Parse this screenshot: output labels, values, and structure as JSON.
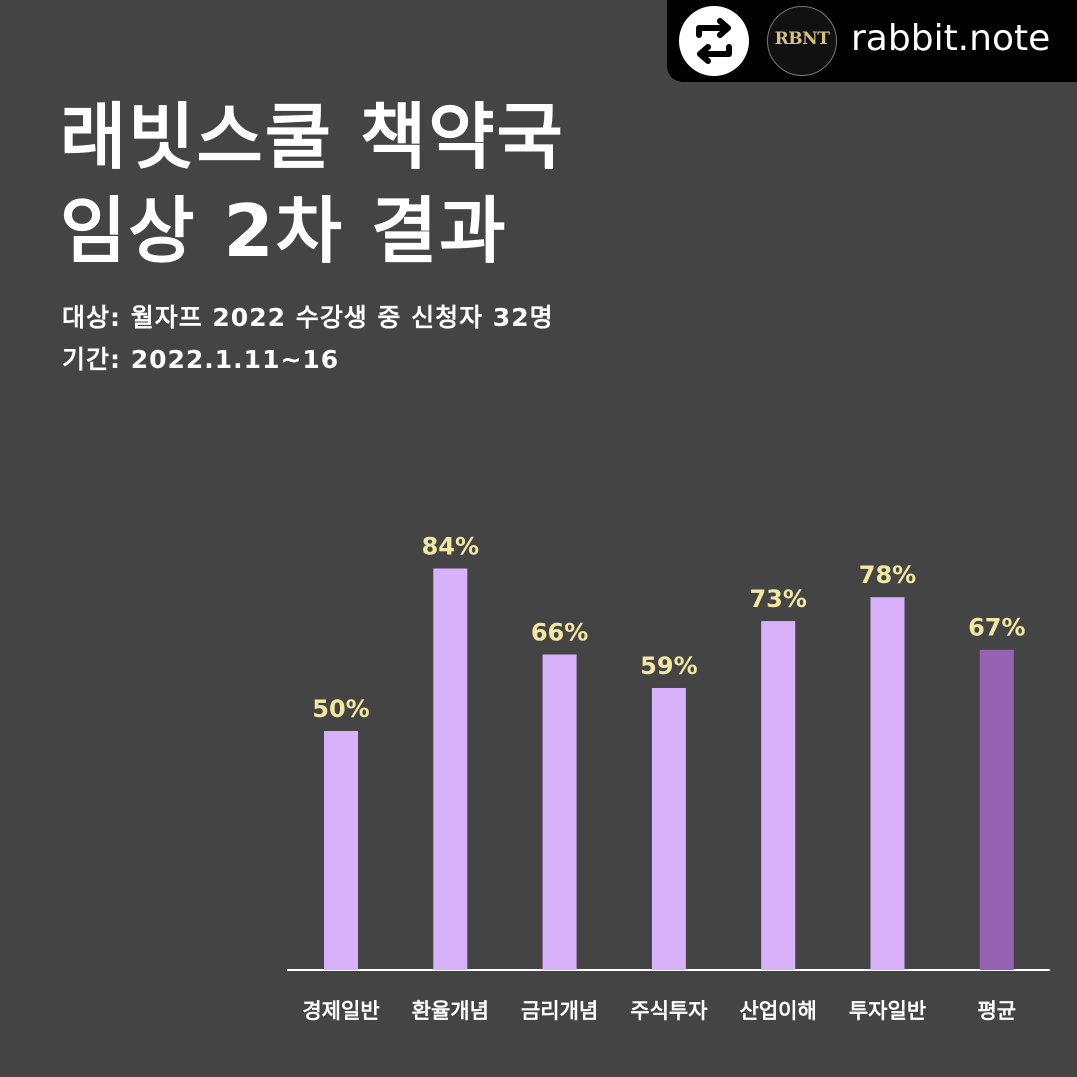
{
  "header": {
    "account_name": "rabbit.note",
    "logo_text": "RBNT",
    "repost_icon": "repost-icon"
  },
  "title": {
    "line1": "래빗스쿨 책약국",
    "line2": "임상 2차 결과"
  },
  "meta": {
    "target": "대상: 월자프 2022 수강생 중 신청자 32명",
    "period": "기간: 2022.1.11~16"
  },
  "colors": {
    "background": "#444444",
    "bar": "#d8b1fb",
    "bar_highlight": "#9462b0",
    "value_label": "#f3e7a4",
    "axis": "#ffffff"
  },
  "chart_data": {
    "type": "bar",
    "categories": [
      "경제일반",
      "환율개념",
      "금리개념",
      "주식투자",
      "산업이해",
      "투자일반",
      "평균"
    ],
    "values": [
      50,
      84,
      66,
      59,
      73,
      78,
      67
    ],
    "value_labels": [
      "50%",
      "84%",
      "66%",
      "59%",
      "73%",
      "78%",
      "67%"
    ],
    "highlight_category": "평균",
    "title": "",
    "xlabel": "",
    "ylabel": "",
    "ylim": [
      0,
      100
    ],
    "grid": false,
    "legend": "none"
  }
}
